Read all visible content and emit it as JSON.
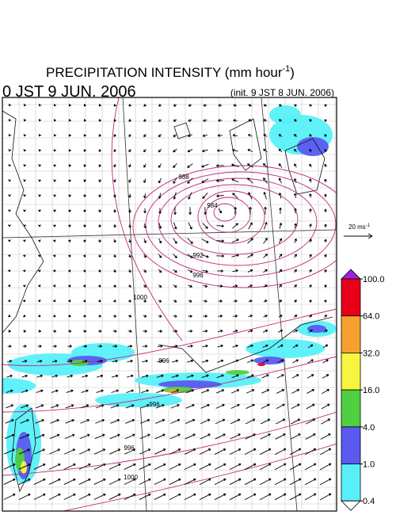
{
  "title": {
    "text": "PRECIPITATION INTENSITY (mm hour",
    "superscript": "-1",
    "suffix": ")"
  },
  "valid_time": "0 JST 9 JUN. 2006",
  "init_time": "(init. 9 JST 8 JUN. 2006)",
  "vector_scale": {
    "text": "20 ms",
    "superscript": "-1"
  },
  "colorbar": {
    "levels": [
      {
        "value": 100,
        "label": "100.0"
      },
      {
        "value": 64,
        "label": "64.0"
      },
      {
        "value": 32,
        "label": "32.0"
      },
      {
        "value": 16,
        "label": "16.0"
      },
      {
        "value": 4,
        "label": "4.0"
      },
      {
        "value": 1,
        "label": "1.0"
      },
      {
        "value": 0.4,
        "label": "0.4"
      }
    ],
    "colors": [
      "#e8001a",
      "#f7a030",
      "#f8f540",
      "#50d040",
      "#5a5af0",
      "#58f0f8"
    ],
    "over_color": "#a020e0",
    "under_color": "#ffffff"
  },
  "contour_labels": [
    "984",
    "988",
    "992",
    "996",
    "1000",
    "996",
    "996",
    "996",
    "1000"
  ]
}
